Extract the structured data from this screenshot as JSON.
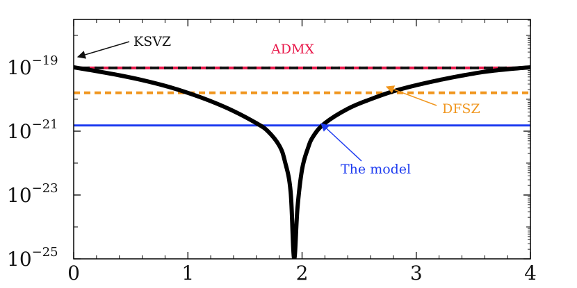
{
  "chart_data": {
    "type": "line",
    "title": "",
    "xlabel": "",
    "ylabel": "",
    "xlim": [
      0,
      4
    ],
    "ylim_log10": [
      -25,
      -17.5
    ],
    "y_scale": "log",
    "grid": false,
    "legend": "none",
    "x_ticks": [
      0,
      1,
      2,
      3,
      4
    ],
    "x_tick_labels": [
      "0",
      "1",
      "2",
      "3",
      "4"
    ],
    "y_ticks_log10": [
      -25,
      -23,
      -21,
      -19
    ],
    "y_tick_labels": [
      {
        "base": "10",
        "exp": "−25"
      },
      {
        "base": "10",
        "exp": "−23"
      },
      {
        "base": "10",
        "exp": "−21"
      },
      {
        "base": "10",
        "exp": "−19"
      }
    ],
    "hlines": [
      {
        "name": "ADMX",
        "log10_y": -19.02,
        "color": "#e8184a",
        "style": "dashed"
      },
      {
        "name": "KSVZ",
        "log10_y": -19.02,
        "color": "#111111",
        "style": "dashed"
      },
      {
        "name": "DFSZ",
        "log10_y": -19.8,
        "color": "#f0961e",
        "style": "dotted"
      },
      {
        "name": "The model",
        "log10_y": -20.82,
        "color": "#1e3cf0",
        "style": "solid"
      }
    ],
    "series": [
      {
        "color": "#000000",
        "x": [
          0,
          0.2,
          0.4,
          0.6,
          0.8,
          1.0,
          1.2,
          1.4,
          1.6,
          1.7,
          1.8,
          1.85,
          1.9,
          1.93,
          1.96,
          2.0,
          2.05,
          2.1,
          2.2,
          2.4,
          2.6,
          2.8,
          3.0,
          3.2,
          3.4,
          3.6,
          3.8,
          4.0
        ],
        "log10_y": [
          -19.0,
          -19.12,
          -19.25,
          -19.4,
          -19.58,
          -19.8,
          -20.06,
          -20.37,
          -20.75,
          -21.0,
          -21.45,
          -21.95,
          -22.9,
          -25,
          -23.4,
          -22.2,
          -21.55,
          -21.15,
          -20.75,
          -20.3,
          -20.0,
          -19.75,
          -19.56,
          -19.4,
          -19.26,
          -19.14,
          -19.06,
          -19.0
        ]
      }
    ],
    "annotations": [
      {
        "text": "KSVZ",
        "color": "#111111"
      },
      {
        "text": "ADMX",
        "color": "#e8184a"
      },
      {
        "text": "DFSZ",
        "color": "#f0961e"
      },
      {
        "text": "The model",
        "color": "#1e3cf0"
      }
    ]
  }
}
